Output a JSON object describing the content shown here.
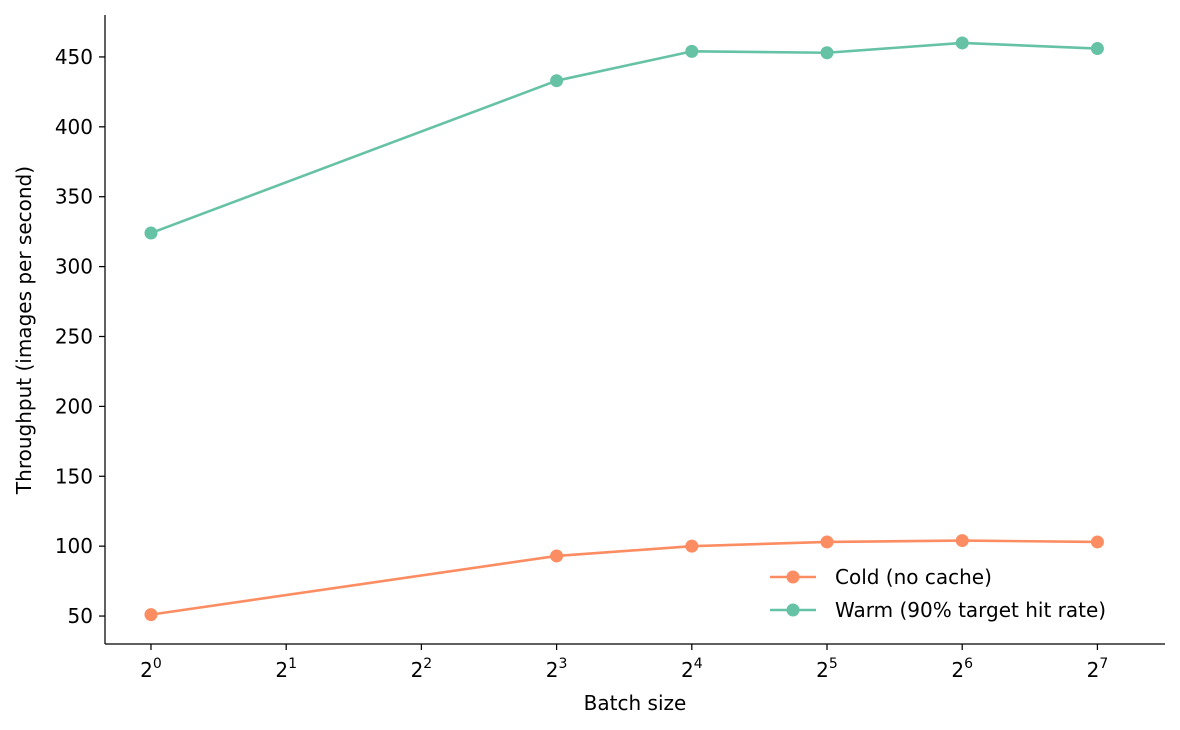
{
  "chart_data": {
    "type": "line",
    "title": "",
    "xlabel": "Batch size",
    "ylabel": "Throughput (images per second)",
    "x_scale": "log2",
    "x": [
      1,
      8,
      16,
      32,
      64,
      128
    ],
    "xticks": [
      {
        "value": 1,
        "base": "2",
        "exp": "0"
      },
      {
        "value": 2,
        "base": "2",
        "exp": "1"
      },
      {
        "value": 4,
        "base": "2",
        "exp": "2"
      },
      {
        "value": 8,
        "base": "2",
        "exp": "3"
      },
      {
        "value": 16,
        "base": "2",
        "exp": "4"
      },
      {
        "value": 32,
        "base": "2",
        "exp": "5"
      },
      {
        "value": 64,
        "base": "2",
        "exp": "6"
      },
      {
        "value": 128,
        "base": "2",
        "exp": "7"
      }
    ],
    "yticks": [
      50,
      100,
      150,
      200,
      250,
      300,
      350,
      400,
      450
    ],
    "ylim": [
      30,
      480
    ],
    "xlim": [
      0.79,
      181
    ],
    "grid": false,
    "legend_position": "lower-right",
    "series": [
      {
        "name": "Cold (no cache)",
        "color": "#fc8d62",
        "values": [
          51,
          93,
          100,
          103,
          104,
          103
        ]
      },
      {
        "name": "Warm (90% target hit rate)",
        "color": "#66c2a5",
        "values": [
          324,
          433,
          454,
          453,
          460,
          456
        ]
      }
    ]
  }
}
